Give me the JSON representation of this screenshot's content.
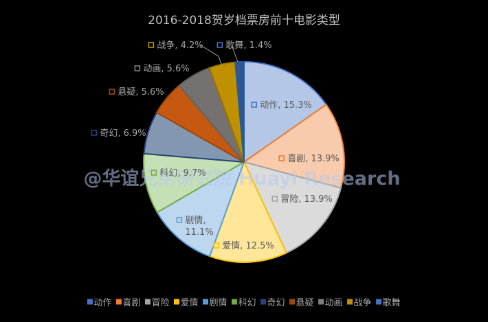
{
  "chart_data": {
    "type": "pie",
    "title": "2016-2018贺岁档票房前十电影类型",
    "slices": [
      {
        "name": "动作",
        "value": 15.3,
        "label": "动作, 15.3%",
        "fill": "#b4c7e7",
        "stroke": "#4472c4",
        "marker": "#4472c4"
      },
      {
        "name": "喜剧",
        "value": 13.9,
        "label": "喜剧, 13.9%",
        "fill": "#f8cbad",
        "stroke": "#ed7d31",
        "marker": "#ed7d31"
      },
      {
        "name": "冒险",
        "value": 13.9,
        "label": "冒险, 13.9%",
        "fill": "#dbdbdb",
        "stroke": "#a5a5a5",
        "marker": "#a5a5a5"
      },
      {
        "name": "爱情",
        "value": 12.5,
        "label": "爱情, 12.5%",
        "fill": "#ffe699",
        "stroke": "#ffc000",
        "marker": "#ffc000"
      },
      {
        "name": "剧情",
        "value": 11.1,
        "label": "剧情,|11.1%",
        "fill": "#bdd7ee",
        "stroke": "#5b9bd5",
        "marker": "#5b9bd5"
      },
      {
        "name": "科幻",
        "value": 9.7,
        "label": "科幻, 9.7%",
        "fill": "#c5e0b4",
        "stroke": "#70ad47",
        "marker": "#70ad47"
      },
      {
        "name": "奇幻",
        "value": 6.9,
        "label": "奇幻, 6.9%",
        "fill": "#8497b0",
        "stroke": "#264478",
        "marker": "#264478"
      },
      {
        "name": "悬疑",
        "value": 5.6,
        "label": "悬疑, 5.6%",
        "fill": "#c65911",
        "stroke": "#9e480e",
        "marker": "#9e480e"
      },
      {
        "name": "动画",
        "value": 5.6,
        "label": "动画, 5.6%",
        "fill": "#757171",
        "stroke": "#636363",
        "marker": "#7f7f7f"
      },
      {
        "name": "战争",
        "value": 4.2,
        "label": "战争, 4.2%",
        "fill": "#bf9000",
        "stroke": "#997300",
        "marker": "#bf9000"
      },
      {
        "name": "歌舞",
        "value": 1.4,
        "label": "歌舞, 1.4%",
        "fill": "#2f5597",
        "stroke": "#255e91",
        "marker": "#4472c4"
      }
    ],
    "legend": {
      "position": "bottom"
    }
  },
  "watermark": "@华谊兄弟研究院 Huayi Research"
}
